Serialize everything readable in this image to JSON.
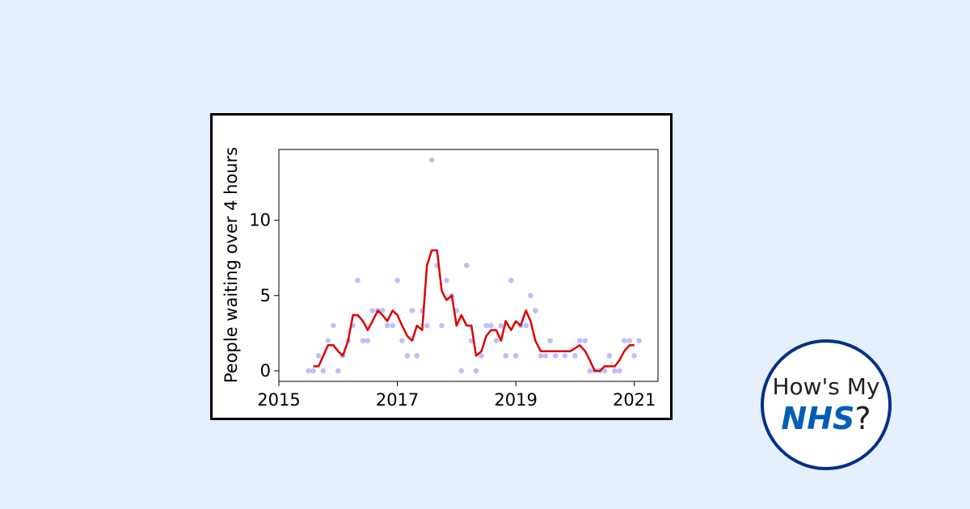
{
  "logo": {
    "line1": "How's My",
    "brand": "NHS",
    "suffix": "?"
  },
  "colors": {
    "background": "#e5effd",
    "points": "#b4b4fa",
    "trend": "#dd0000",
    "nhs_blue": "#005eb8",
    "logo_ring": "#003087"
  },
  "chart_data": {
    "type": "scatter",
    "ylabel": "People waiting over 4 hours",
    "xlabel": "",
    "xlim": [
      2015.0,
      2021.4
    ],
    "ylim": [
      -0.7,
      14.7
    ],
    "x_ticks": [
      2015,
      2017,
      2019,
      2021
    ],
    "y_ticks": [
      0,
      5,
      10
    ],
    "x_tick_labels": [
      "2015",
      "2017",
      "2019",
      "2021"
    ],
    "y_tick_labels": [
      "0",
      "5",
      "10"
    ],
    "grid": false,
    "series": [
      {
        "kind": "points",
        "x": [
          2015.5,
          2015.58,
          2015.67,
          2015.75,
          2015.83,
          2015.92,
          2016.0,
          2016.08,
          2016.17,
          2016.25,
          2016.33,
          2016.42,
          2016.5,
          2016.58,
          2016.67,
          2016.75,
          2016.83,
          2016.92,
          2017.0,
          2017.08,
          2017.17,
          2017.25,
          2017.33,
          2017.42,
          2017.5,
          2017.58,
          2017.67,
          2017.75,
          2017.83,
          2017.92,
          2018.0,
          2018.08,
          2018.17,
          2018.25,
          2018.33,
          2018.42,
          2018.5,
          2018.58,
          2018.67,
          2018.75,
          2018.83,
          2018.92,
          2019.0,
          2019.08,
          2019.17,
          2019.25,
          2019.33,
          2019.42,
          2019.5,
          2019.58,
          2019.67,
          2019.83,
          2020.0,
          2020.08,
          2020.17,
          2020.25,
          2020.33,
          2020.42,
          2020.5,
          2020.58,
          2020.67,
          2020.75,
          2020.83,
          2020.92,
          2021.0,
          2021.08
        ],
        "y": [
          0,
          0,
          1,
          0,
          2,
          3,
          0,
          1,
          2,
          3,
          6,
          2,
          2,
          4,
          4,
          4,
          3,
          3,
          6,
          2,
          1,
          4,
          1,
          4,
          3,
          14,
          7,
          3,
          6,
          5,
          4,
          0,
          7,
          2,
          0,
          1,
          3,
          3,
          2,
          3,
          1,
          6,
          1,
          3,
          3,
          5,
          4,
          1,
          1,
          2,
          1,
          1,
          1,
          2,
          2,
          0,
          0,
          0,
          0,
          1,
          0,
          0,
          2,
          2,
          1,
          2
        ]
      },
      {
        "kind": "trend",
        "x": [
          2015.58,
          2015.67,
          2015.75,
          2015.83,
          2015.92,
          2016.0,
          2016.08,
          2016.17,
          2016.25,
          2016.33,
          2016.42,
          2016.5,
          2016.58,
          2016.67,
          2016.75,
          2016.83,
          2016.92,
          2017.0,
          2017.08,
          2017.17,
          2017.25,
          2017.33,
          2017.42,
          2017.5,
          2017.58,
          2017.67,
          2017.75,
          2017.83,
          2017.92,
          2018.0,
          2018.08,
          2018.17,
          2018.25,
          2018.33,
          2018.42,
          2018.5,
          2018.58,
          2018.67,
          2018.75,
          2018.83,
          2018.92,
          2019.0,
          2019.08,
          2019.17,
          2019.25,
          2019.33,
          2019.42,
          2019.5,
          2019.58,
          2019.67,
          2019.75,
          2019.83,
          2019.92,
          2020.0,
          2020.08,
          2020.17,
          2020.25,
          2020.33,
          2020.42,
          2020.5,
          2020.58,
          2020.67,
          2020.75,
          2020.83,
          2020.92,
          2021.0
        ],
        "y": [
          0.3,
          0.3,
          1.0,
          1.7,
          1.7,
          1.3,
          1.0,
          2.0,
          3.7,
          3.7,
          3.3,
          2.7,
          3.3,
          4.0,
          3.7,
          3.3,
          4.0,
          3.7,
          3.0,
          2.3,
          2.0,
          3.0,
          2.7,
          7.0,
          8.0,
          8.0,
          5.3,
          4.7,
          5.0,
          3.0,
          3.7,
          3.0,
          3.0,
          1.0,
          1.3,
          2.3,
          2.7,
          2.7,
          2.0,
          3.3,
          2.7,
          3.3,
          3.0,
          4.0,
          3.3,
          2.0,
          1.3,
          1.3,
          1.3,
          1.3,
          1.3,
          1.3,
          1.3,
          1.5,
          1.7,
          1.3,
          0.7,
          0,
          0,
          0.3,
          0.3,
          0.3,
          0.7,
          1.3,
          1.7,
          1.7
        ]
      }
    ]
  }
}
